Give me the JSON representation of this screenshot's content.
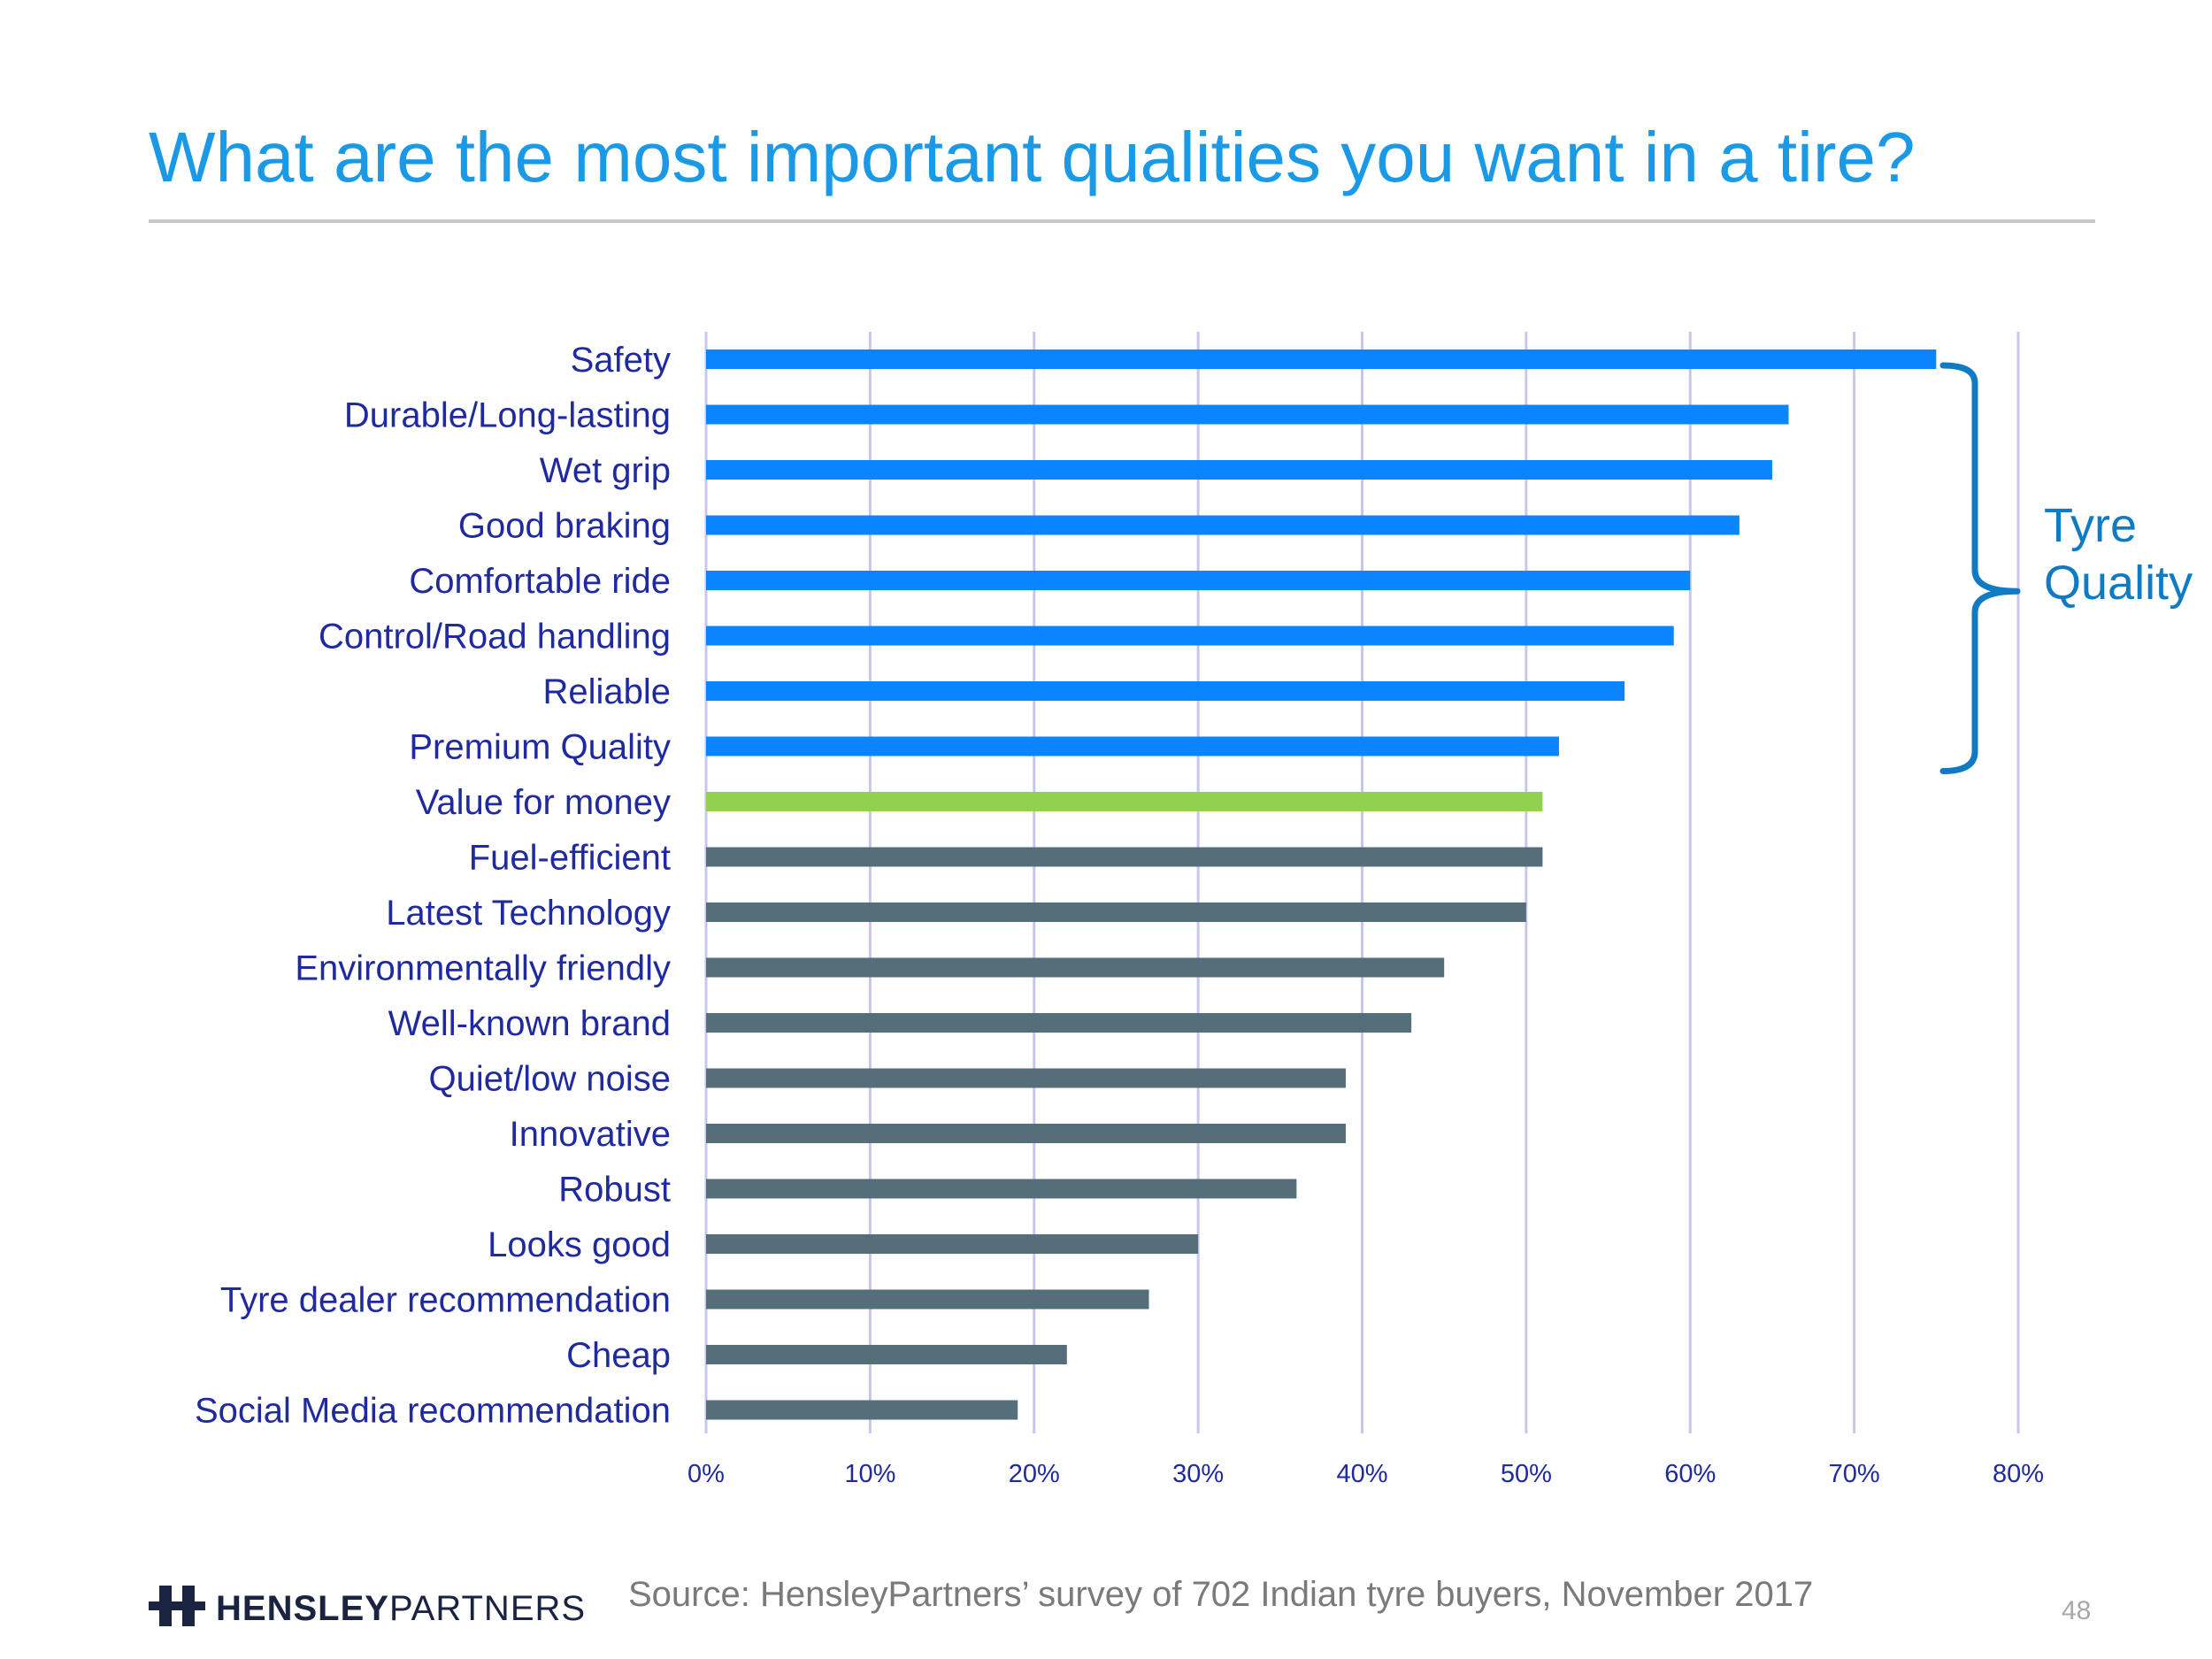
{
  "title": "What are the most important qualities you want in a tire?",
  "chart_data": {
    "type": "bar",
    "orientation": "horizontal",
    "categories": [
      "Safety",
      "Durable/Long-lasting",
      "Wet grip",
      "Good braking",
      "Comfortable ride",
      "Control/Road handling",
      "Reliable",
      "Premium Quality",
      "Value for money",
      "Fuel-efficient",
      "Latest Technology",
      "Environmentally friendly",
      "Well-known brand",
      "Quiet/low noise",
      "Innovative",
      "Robust",
      "Looks good",
      "Tyre dealer recommendation",
      "Cheap",
      "Social Media recommendation"
    ],
    "values": [
      75,
      66,
      65,
      63,
      60,
      59,
      56,
      52,
      51,
      51,
      50,
      45,
      43,
      39,
      39,
      36,
      30,
      27,
      22,
      19
    ],
    "bar_colors": [
      "#0a84ff",
      "#0a84ff",
      "#0a84ff",
      "#0a84ff",
      "#0a84ff",
      "#0a84ff",
      "#0a84ff",
      "#0a84ff",
      "#92d050",
      "#546e7a",
      "#546e7a",
      "#546e7a",
      "#546e7a",
      "#546e7a",
      "#546e7a",
      "#546e7a",
      "#546e7a",
      "#546e7a",
      "#546e7a",
      "#546e7a"
    ],
    "x_ticks": [
      "0%",
      "10%",
      "20%",
      "30%",
      "40%",
      "50%",
      "60%",
      "70%",
      "80%"
    ],
    "xlim": [
      0,
      80
    ],
    "grid": true,
    "bracket": {
      "label_line1": "Tyre",
      "label_line2": "Quality",
      "from_category": "Safety",
      "to_category": "Premium Quality",
      "color": "#0f7bc4"
    }
  },
  "footer": {
    "logo_bold": "HENSLEY",
    "logo_light": "PARTNERS",
    "source": "Source: HensleyPartners’ survey of 702 Indian tyre buyers, November 2017",
    "page_number": "48"
  }
}
